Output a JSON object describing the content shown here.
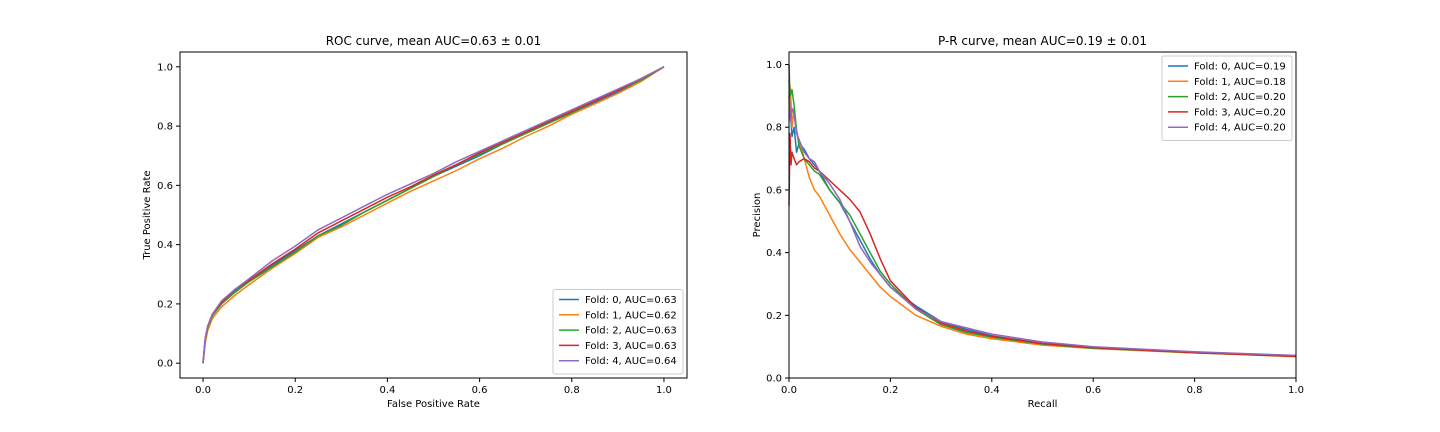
{
  "chart_data": [
    {
      "type": "line",
      "title": "ROC curve, mean AUC=0.63 ± 0.01",
      "xlabel": "False Positive Rate",
      "ylabel": "True Positive Rate",
      "xlim": [
        -0.05,
        1.05
      ],
      "ylim": [
        -0.05,
        1.05
      ],
      "xticks": [
        0.0,
        0.2,
        0.4,
        0.6,
        0.8,
        1.0
      ],
      "yticks": [
        0.0,
        0.2,
        0.4,
        0.6,
        0.8,
        1.0
      ],
      "tick_labels_x": [
        "0.0",
        "0.2",
        "0.4",
        "0.6",
        "0.8",
        "1.0"
      ],
      "tick_labels_y": [
        "0.0",
        "0.2",
        "0.4",
        "0.6",
        "0.8",
        "1.0"
      ],
      "grid": false,
      "legend_position": "lower-right",
      "series": [
        {
          "name": "Fold: 0, AUC=0.63",
          "color": "#1f77b4",
          "x": [
            0,
            0.005,
            0.01,
            0.02,
            0.04,
            0.07,
            0.1,
            0.15,
            0.2,
            0.25,
            0.3,
            0.35,
            0.4,
            0.45,
            0.5,
            0.55,
            0.6,
            0.65,
            0.7,
            0.75,
            0.8,
            0.85,
            0.9,
            0.95,
            1.0
          ],
          "y": [
            0,
            0.08,
            0.12,
            0.16,
            0.2,
            0.245,
            0.28,
            0.33,
            0.38,
            0.43,
            0.47,
            0.51,
            0.55,
            0.59,
            0.63,
            0.665,
            0.7,
            0.74,
            0.775,
            0.81,
            0.845,
            0.88,
            0.915,
            0.955,
            1.0
          ]
        },
        {
          "name": "Fold: 1, AUC=0.62",
          "color": "#ff7f0e",
          "x": [
            0,
            0.005,
            0.01,
            0.02,
            0.04,
            0.07,
            0.1,
            0.15,
            0.2,
            0.25,
            0.3,
            0.35,
            0.4,
            0.45,
            0.5,
            0.55,
            0.6,
            0.65,
            0.7,
            0.75,
            0.8,
            0.85,
            0.9,
            0.95,
            1.0
          ],
          "y": [
            0,
            0.07,
            0.11,
            0.15,
            0.19,
            0.23,
            0.265,
            0.32,
            0.37,
            0.425,
            0.46,
            0.5,
            0.54,
            0.58,
            0.615,
            0.65,
            0.69,
            0.725,
            0.765,
            0.8,
            0.84,
            0.875,
            0.91,
            0.95,
            1.0
          ]
        },
        {
          "name": "Fold: 2, AUC=0.63",
          "color": "#2ca02c",
          "x": [
            0,
            0.005,
            0.01,
            0.02,
            0.04,
            0.07,
            0.1,
            0.15,
            0.2,
            0.25,
            0.3,
            0.35,
            0.4,
            0.45,
            0.5,
            0.55,
            0.6,
            0.65,
            0.7,
            0.75,
            0.8,
            0.85,
            0.9,
            0.95,
            1.0
          ],
          "y": [
            0,
            0.08,
            0.12,
            0.16,
            0.2,
            0.24,
            0.275,
            0.325,
            0.375,
            0.43,
            0.465,
            0.51,
            0.55,
            0.59,
            0.63,
            0.67,
            0.705,
            0.74,
            0.775,
            0.81,
            0.845,
            0.885,
            0.92,
            0.955,
            1.0
          ]
        },
        {
          "name": "Fold: 3, AUC=0.63",
          "color": "#d62728",
          "x": [
            0,
            0.005,
            0.01,
            0.02,
            0.04,
            0.07,
            0.1,
            0.15,
            0.2,
            0.25,
            0.3,
            0.35,
            0.4,
            0.45,
            0.5,
            0.55,
            0.6,
            0.65,
            0.7,
            0.75,
            0.8,
            0.85,
            0.9,
            0.95,
            1.0
          ],
          "y": [
            0,
            0.085,
            0.125,
            0.165,
            0.205,
            0.25,
            0.28,
            0.335,
            0.385,
            0.44,
            0.48,
            0.52,
            0.56,
            0.595,
            0.635,
            0.67,
            0.71,
            0.745,
            0.78,
            0.815,
            0.85,
            0.885,
            0.92,
            0.96,
            1.0
          ]
        },
        {
          "name": "Fold: 4, AUC=0.64",
          "color": "#9467bd",
          "x": [
            0,
            0.005,
            0.01,
            0.02,
            0.04,
            0.07,
            0.1,
            0.15,
            0.2,
            0.25,
            0.3,
            0.35,
            0.4,
            0.45,
            0.5,
            0.55,
            0.6,
            0.65,
            0.7,
            0.75,
            0.8,
            0.85,
            0.9,
            0.95,
            1.0
          ],
          "y": [
            0,
            0.085,
            0.125,
            0.165,
            0.21,
            0.25,
            0.285,
            0.345,
            0.395,
            0.45,
            0.49,
            0.53,
            0.57,
            0.605,
            0.64,
            0.68,
            0.715,
            0.75,
            0.785,
            0.82,
            0.855,
            0.89,
            0.925,
            0.96,
            1.0
          ]
        }
      ]
    },
    {
      "type": "line",
      "title": "P-R curve, mean AUC=0.19 ± 0.01",
      "xlabel": "Recall",
      "ylabel": "Precision",
      "xlim": [
        0.0,
        1.0
      ],
      "ylim": [
        0.0,
        1.04
      ],
      "xticks": [
        0.0,
        0.2,
        0.4,
        0.6,
        0.8,
        1.0
      ],
      "yticks": [
        0.0,
        0.2,
        0.4,
        0.6,
        0.8,
        1.0
      ],
      "tick_labels_x": [
        "0.0",
        "0.2",
        "0.4",
        "0.6",
        "0.8",
        "1.0"
      ],
      "tick_labels_y": [
        "0.0",
        "0.2",
        "0.4",
        "0.6",
        "0.8",
        "1.0"
      ],
      "grid": false,
      "legend_position": "upper-right",
      "series": [
        {
          "name": "Fold: 0, AUC=0.19",
          "color": "#1f77b4",
          "x": [
            0,
            0.003,
            0.006,
            0.01,
            0.015,
            0.02,
            0.03,
            0.04,
            0.05,
            0.06,
            0.08,
            0.1,
            0.12,
            0.14,
            0.16,
            0.18,
            0.2,
            0.25,
            0.3,
            0.35,
            0.4,
            0.5,
            0.6,
            0.7,
            0.8,
            0.9,
            1.0
          ],
          "y": [
            1.0,
            0.85,
            0.77,
            0.8,
            0.72,
            0.75,
            0.73,
            0.7,
            0.68,
            0.66,
            0.6,
            0.56,
            0.5,
            0.44,
            0.38,
            0.33,
            0.29,
            0.23,
            0.18,
            0.155,
            0.135,
            0.11,
            0.098,
            0.09,
            0.082,
            0.076,
            0.07
          ]
        },
        {
          "name": "Fold: 1, AUC=0.18",
          "color": "#ff7f0e",
          "x": [
            0,
            0.003,
            0.006,
            0.01,
            0.015,
            0.02,
            0.03,
            0.04,
            0.05,
            0.06,
            0.08,
            0.1,
            0.12,
            0.14,
            0.16,
            0.18,
            0.2,
            0.25,
            0.3,
            0.35,
            0.4,
            0.5,
            0.6,
            0.7,
            0.8,
            0.9,
            1.0
          ],
          "y": [
            0.95,
            0.92,
            0.8,
            0.86,
            0.78,
            0.76,
            0.7,
            0.64,
            0.6,
            0.58,
            0.52,
            0.46,
            0.41,
            0.37,
            0.33,
            0.29,
            0.26,
            0.2,
            0.165,
            0.14,
            0.125,
            0.105,
            0.094,
            0.087,
            0.08,
            0.074,
            0.068
          ]
        },
        {
          "name": "Fold: 2, AUC=0.20",
          "color": "#2ca02c",
          "x": [
            0,
            0.003,
            0.006,
            0.01,
            0.015,
            0.02,
            0.03,
            0.04,
            0.05,
            0.06,
            0.08,
            0.1,
            0.12,
            0.14,
            0.16,
            0.18,
            0.2,
            0.25,
            0.3,
            0.35,
            0.4,
            0.5,
            0.6,
            0.7,
            0.8,
            0.9,
            1.0
          ],
          "y": [
            0.95,
            0.9,
            0.92,
            0.87,
            0.79,
            0.74,
            0.7,
            0.68,
            0.66,
            0.65,
            0.6,
            0.56,
            0.52,
            0.46,
            0.4,
            0.34,
            0.3,
            0.22,
            0.17,
            0.145,
            0.13,
            0.108,
            0.095,
            0.088,
            0.08,
            0.075,
            0.069
          ]
        },
        {
          "name": "Fold: 3, AUC=0.20",
          "color": "#d62728",
          "x": [
            0,
            0.002,
            0.004,
            0.006,
            0.01,
            0.015,
            0.02,
            0.03,
            0.04,
            0.05,
            0.06,
            0.08,
            0.1,
            0.12,
            0.14,
            0.16,
            0.18,
            0.2,
            0.25,
            0.3,
            0.35,
            0.4,
            0.5,
            0.6,
            0.7,
            0.8,
            0.9,
            1.0
          ],
          "y": [
            0.55,
            0.78,
            0.68,
            0.72,
            0.7,
            0.68,
            0.69,
            0.7,
            0.69,
            0.67,
            0.66,
            0.63,
            0.6,
            0.57,
            0.53,
            0.46,
            0.38,
            0.31,
            0.225,
            0.175,
            0.15,
            0.133,
            0.11,
            0.097,
            0.089,
            0.081,
            0.075,
            0.069
          ]
        },
        {
          "name": "Fold: 4, AUC=0.20",
          "color": "#9467bd",
          "x": [
            0,
            0.003,
            0.006,
            0.01,
            0.015,
            0.02,
            0.03,
            0.04,
            0.05,
            0.06,
            0.08,
            0.1,
            0.12,
            0.14,
            0.16,
            0.18,
            0.2,
            0.25,
            0.3,
            0.35,
            0.4,
            0.5,
            0.6,
            0.7,
            0.8,
            0.9,
            1.0
          ],
          "y": [
            0.9,
            0.82,
            0.86,
            0.84,
            0.78,
            0.76,
            0.72,
            0.7,
            0.69,
            0.66,
            0.62,
            0.57,
            0.5,
            0.42,
            0.37,
            0.33,
            0.29,
            0.22,
            0.18,
            0.16,
            0.14,
            0.115,
            0.1,
            0.092,
            0.084,
            0.078,
            0.072
          ]
        }
      ]
    }
  ]
}
